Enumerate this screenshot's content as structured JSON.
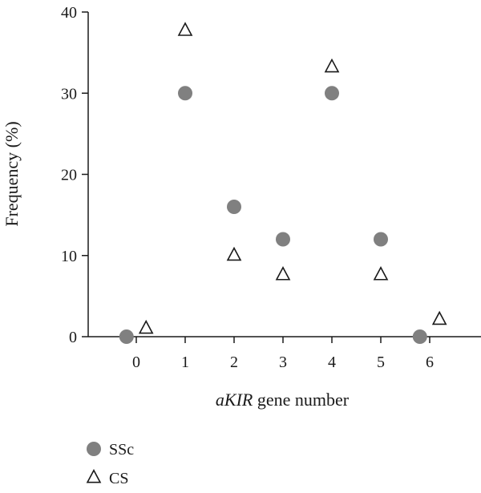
{
  "chart_data": {
    "type": "scatter",
    "title": "",
    "xlabel_italic": "aKIR",
    "xlabel_rest": " gene number",
    "ylabel": "Frequency (%)",
    "x_ticks": [
      "0",
      "1",
      "2",
      "3",
      "4",
      "5",
      "6"
    ],
    "y_ticks": [
      "0",
      "10",
      "20",
      "30",
      "40"
    ],
    "ylim": [
      0,
      40
    ],
    "xlim": [
      -1,
      6.5
    ],
    "grid": false,
    "legend_position": "bottom-left",
    "series": [
      {
        "name": "SSc",
        "marker": "filled-circle",
        "color": "#808080",
        "x": [
          -0.2,
          1,
          2,
          3,
          4,
          5,
          5.8
        ],
        "y": [
          0,
          30,
          16,
          12,
          30,
          12,
          0
        ]
      },
      {
        "name": "CS",
        "marker": "open-triangle",
        "color": "#1a1a1a",
        "x": [
          0.2,
          1,
          2,
          3,
          4,
          5,
          6.2
        ],
        "y": [
          1,
          37.7,
          10,
          7.6,
          33.2,
          7.6,
          2.1
        ]
      }
    ]
  }
}
